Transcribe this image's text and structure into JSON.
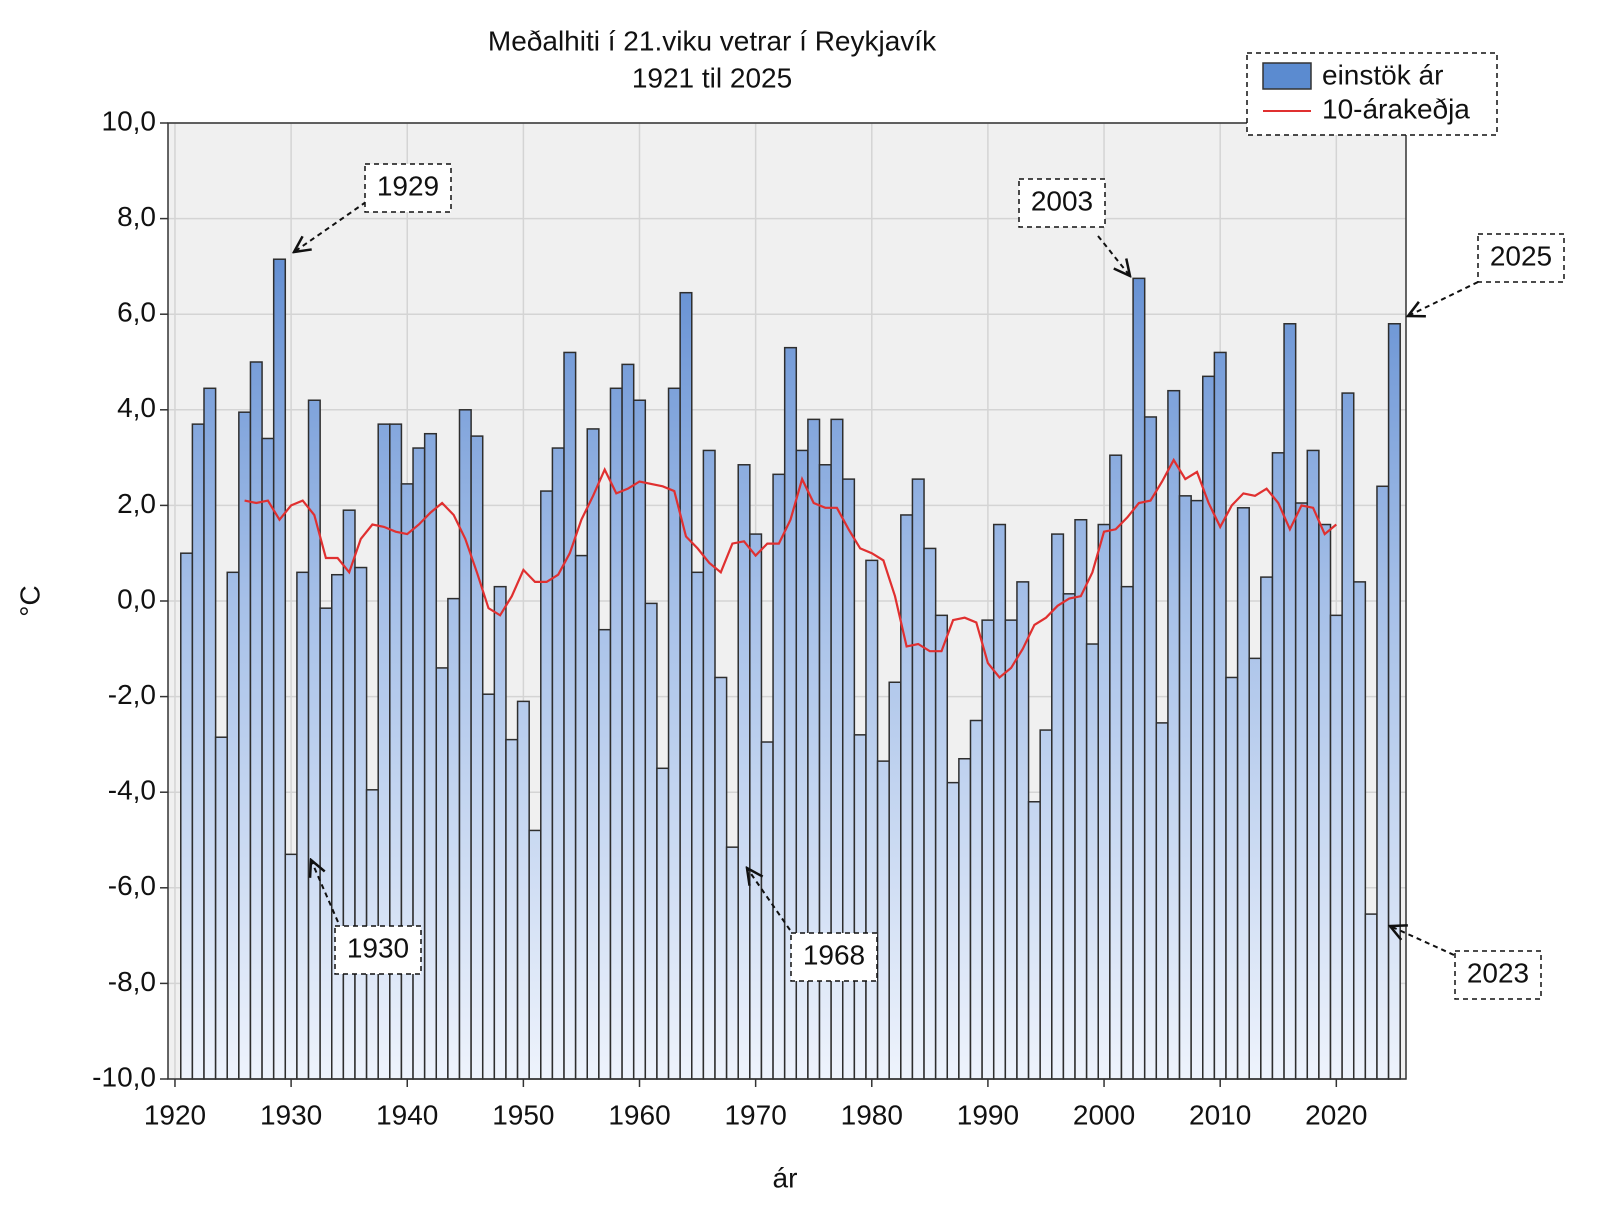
{
  "chart_data": {
    "type": "bar",
    "title": "Meðalhiti í 21.viku vetrar í Reykjavík",
    "subtitle": "1921 til 2025",
    "xlabel": "ár",
    "ylabel": "°C",
    "xlim": [
      1919.4,
      2026
    ],
    "ylim": [
      -10,
      10
    ],
    "xticks": [
      1920,
      1930,
      1940,
      1950,
      1960,
      1970,
      1980,
      1990,
      2000,
      2010,
      2020
    ],
    "yticks": [
      {
        "value": -10,
        "label": "-10,0"
      },
      {
        "value": -8,
        "label": "-8,0"
      },
      {
        "value": -6,
        "label": "-6,0"
      },
      {
        "value": -4,
        "label": "-4,0"
      },
      {
        "value": -2,
        "label": "-2,0"
      },
      {
        "value": 0,
        "label": "0,0"
      },
      {
        "value": 2,
        "label": "2,0"
      },
      {
        "value": 4,
        "label": "4,0"
      },
      {
        "value": 6,
        "label": "6,0"
      },
      {
        "value": 8,
        "label": "8,0"
      },
      {
        "value": 10,
        "label": "10,0"
      }
    ],
    "grid": true,
    "legend": "upper right",
    "series": [
      {
        "name": "einstök ár",
        "type": "bar",
        "color": "#5b8bd0",
        "x": [
          1921,
          1922,
          1923,
          1924,
          1925,
          1926,
          1927,
          1928,
          1929,
          1930,
          1931,
          1932,
          1933,
          1934,
          1935,
          1936,
          1937,
          1938,
          1939,
          1940,
          1941,
          1942,
          1943,
          1944,
          1945,
          1946,
          1947,
          1948,
          1949,
          1950,
          1951,
          1952,
          1953,
          1954,
          1955,
          1956,
          1957,
          1958,
          1959,
          1960,
          1961,
          1962,
          1963,
          1964,
          1965,
          1966,
          1967,
          1968,
          1969,
          1970,
          1971,
          1972,
          1973,
          1974,
          1975,
          1976,
          1977,
          1978,
          1979,
          1980,
          1981,
          1982,
          1983,
          1984,
          1985,
          1986,
          1987,
          1988,
          1989,
          1990,
          1991,
          1992,
          1993,
          1994,
          1995,
          1996,
          1997,
          1998,
          1999,
          2000,
          2001,
          2002,
          2003,
          2004,
          2005,
          2006,
          2007,
          2008,
          2009,
          2010,
          2011,
          2012,
          2013,
          2014,
          2015,
          2016,
          2017,
          2018,
          2019,
          2020,
          2021,
          2022,
          2023,
          2024,
          2025
        ],
        "values": [
          1.0,
          3.7,
          4.45,
          -2.85,
          0.6,
          3.95,
          5.0,
          3.4,
          7.15,
          -5.3,
          0.6,
          4.2,
          -0.15,
          0.55,
          1.9,
          0.7,
          -3.95,
          3.7,
          3.7,
          2.45,
          3.2,
          3.5,
          -1.4,
          0.05,
          4.0,
          3.45,
          -1.95,
          0.3,
          -2.9,
          -2.1,
          -4.8,
          2.3,
          3.2,
          5.2,
          0.95,
          3.6,
          -0.6,
          4.45,
          4.95,
          4.2,
          -0.05,
          -3.5,
          4.45,
          6.45,
          0.6,
          3.15,
          -1.6,
          -5.15,
          2.85,
          1.4,
          -2.95,
          2.65,
          5.3,
          3.15,
          3.8,
          2.85,
          3.8,
          2.55,
          -2.8,
          0.85,
          -3.35,
          -1.7,
          1.8,
          2.55,
          1.1,
          -0.3,
          -3.8,
          -3.3,
          -2.5,
          -0.4,
          1.6,
          -0.4,
          0.4,
          -4.2,
          -2.7,
          1.4,
          0.15,
          1.7,
          -0.9,
          1.6,
          3.05,
          0.3,
          6.75,
          3.85,
          -2.55,
          4.4,
          2.2,
          2.1,
          4.7,
          5.2,
          -1.6,
          1.95,
          -1.2,
          0.5,
          3.1,
          5.8,
          2.05,
          3.15,
          1.6,
          -0.3,
          4.35,
          0.4,
          -6.55,
          2.4,
          5.8
        ]
      },
      {
        "name": "10-árakeðja",
        "type": "line",
        "color": "#e03030",
        "x": [
          1926,
          1927,
          1928,
          1929,
          1930,
          1931,
          1932,
          1933,
          1934,
          1935,
          1936,
          1937,
          1938,
          1939,
          1940,
          1941,
          1942,
          1943,
          1944,
          1945,
          1946,
          1947,
          1948,
          1949,
          1950,
          1951,
          1952,
          1953,
          1954,
          1955,
          1956,
          1957,
          1958,
          1959,
          1960,
          1961,
          1962,
          1963,
          1964,
          1965,
          1966,
          1967,
          1968,
          1969,
          1970,
          1971,
          1972,
          1973,
          1974,
          1975,
          1976,
          1977,
          1978,
          1979,
          1980,
          1981,
          1982,
          1983,
          1984,
          1985,
          1986,
          1987,
          1988,
          1989,
          1990,
          1991,
          1992,
          1993,
          1994,
          1995,
          1996,
          1997,
          1998,
          1999,
          2000,
          2001,
          2002,
          2003,
          2004,
          2005,
          2006,
          2007,
          2008,
          2009,
          2010,
          2011,
          2012,
          2013,
          2014,
          2015,
          2016,
          2017,
          2018,
          2019,
          2020
        ],
        "values": [
          2.1,
          2.05,
          2.1,
          1.7,
          2.0,
          2.1,
          1.8,
          0.9,
          0.9,
          0.6,
          1.3,
          1.6,
          1.55,
          1.45,
          1.4,
          1.6,
          1.85,
          2.05,
          1.8,
          1.3,
          0.6,
          -0.15,
          -0.3,
          0.1,
          0.65,
          0.4,
          0.4,
          0.55,
          1.0,
          1.7,
          2.2,
          2.75,
          2.25,
          2.35,
          2.5,
          2.45,
          2.4,
          2.3,
          1.35,
          1.1,
          0.8,
          0.6,
          1.2,
          1.25,
          0.95,
          1.2,
          1.2,
          1.7,
          2.55,
          2.05,
          1.95,
          1.95,
          1.5,
          1.1,
          1.0,
          0.85,
          0.1,
          -0.95,
          -0.9,
          -1.05,
          -1.05,
          -0.4,
          -0.35,
          -0.45,
          -1.3,
          -1.6,
          -1.4,
          -1.0,
          -0.5,
          -0.35,
          -0.1,
          0.05,
          0.1,
          0.6,
          1.45,
          1.5,
          1.75,
          2.05,
          2.1,
          2.5,
          2.95,
          2.55,
          2.7,
          2.05,
          1.55,
          2.0,
          2.25,
          2.2,
          2.35,
          2.05,
          1.5,
          2.0,
          1.95,
          1.4,
          1.6
        ]
      }
    ],
    "annotations": [
      "1929",
      "1930",
      "1968",
      "2003",
      "2025",
      "2023"
    ]
  }
}
